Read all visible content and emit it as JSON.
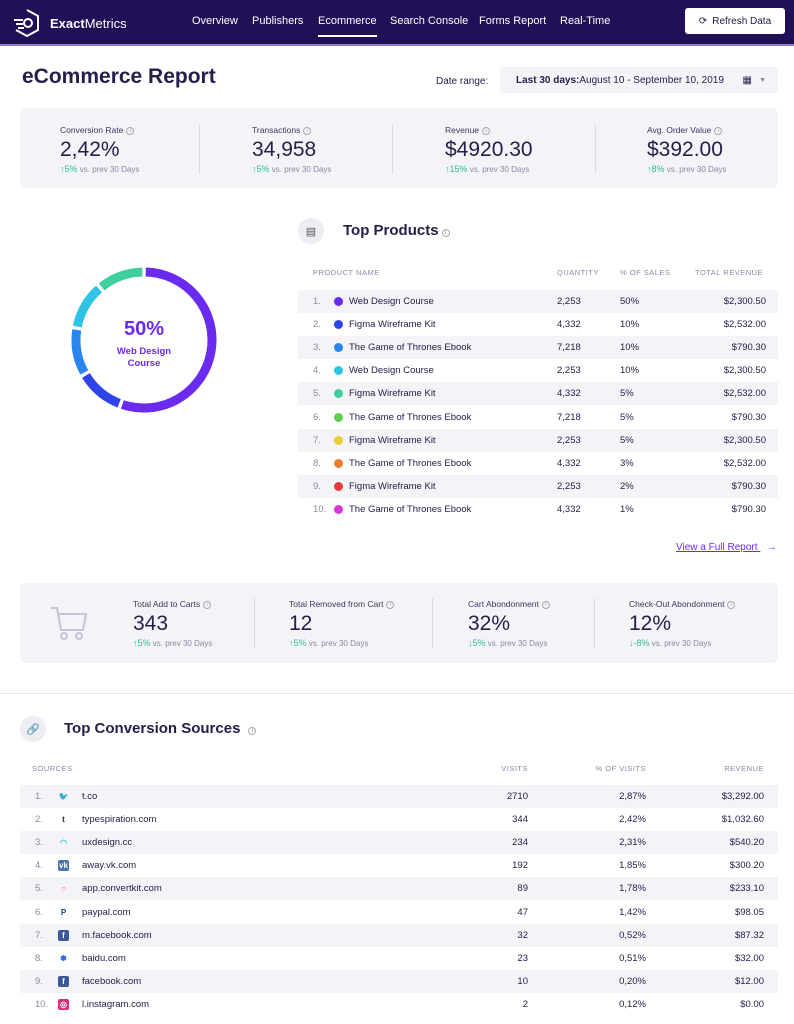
{
  "nav": {
    "brand_bold": "Exact",
    "brand_light": "Metrics",
    "items": [
      "Overview",
      "Publishers",
      "Ecommerce",
      "Search Console",
      "Forms Report",
      "Real-Time"
    ],
    "active": "Ecommerce",
    "refresh_label": "Refresh Data"
  },
  "header": {
    "title": "eCommerce Report",
    "date_label": "Date range:",
    "date_bold": "Last 30 days:",
    "date_value": " August 10 - September 10, 2019"
  },
  "stats": [
    {
      "label": "Conversion Rate",
      "value": "2,42%",
      "change": "5%",
      "note": "vs. prev 30 Days",
      "dir": "up"
    },
    {
      "label": "Transactions",
      "value": "34,958",
      "change": "5%",
      "note": "vs. prev 30 Days",
      "dir": "up"
    },
    {
      "label": "Revenue",
      "value": "$4920.30",
      "change": "15%",
      "note": "vs. prev 30 Days",
      "dir": "up"
    },
    {
      "label": "Avg. Order Value",
      "value": "$392.00",
      "change": "8%",
      "note": "vs. prev 30 Days",
      "dir": "up"
    }
  ],
  "donut": {
    "percent": "50%",
    "label": "Web Design Course",
    "segments": [
      {
        "value": 50,
        "color": "#6a2bef"
      },
      {
        "value": 10,
        "color": "#2f44e8"
      },
      {
        "value": 10,
        "color": "#2a86ee"
      },
      {
        "value": 10,
        "color": "#2fc4e6"
      },
      {
        "value": 10,
        "color": "#3fcf9e"
      }
    ]
  },
  "top_products": {
    "title": "Top Products",
    "columns": [
      "PRODUCT NAME",
      "QUANTITY",
      "% OF SALES",
      "TOTAL REVENUE"
    ],
    "rows": [
      {
        "n": "1.",
        "name": "Web Design Course",
        "qty": "2,253",
        "pct": "50%",
        "rev": "$2,300.50",
        "color": "#6a2bef"
      },
      {
        "n": "2.",
        "name": "Figma Wireframe Kit",
        "qty": "4,332",
        "pct": "10%",
        "rev": "$2,532.00",
        "color": "#2f44e8"
      },
      {
        "n": "3.",
        "name": "The Game of Thrones Ebook",
        "qty": "7,218",
        "pct": "10%",
        "rev": "$790.30",
        "color": "#2a86ee"
      },
      {
        "n": "4.",
        "name": "Web Design Course",
        "qty": "2,253",
        "pct": "10%",
        "rev": "$2,300.50",
        "color": "#2fc4e6"
      },
      {
        "n": "5.",
        "name": "Figma Wireframe Kit",
        "qty": "4,332",
        "pct": "5%",
        "rev": "$2,532.00",
        "color": "#3fcf9e"
      },
      {
        "n": "6.",
        "name": "The Game of Thrones Ebook",
        "qty": "7,218",
        "pct": "5%",
        "rev": "$790.30",
        "color": "#5ccf4c"
      },
      {
        "n": "7.",
        "name": "Figma Wireframe Kit",
        "qty": "2,253",
        "pct": "5%",
        "rev": "$2,300.50",
        "color": "#e6d034"
      },
      {
        "n": "8.",
        "name": "The Game of Thrones Ebook",
        "qty": "4,332",
        "pct": "3%",
        "rev": "$2,532.00",
        "color": "#ee7a2e"
      },
      {
        "n": "9.",
        "name": "Figma Wireframe Kit",
        "qty": "2,253",
        "pct": "2%",
        "rev": "$790.30",
        "color": "#e33a3a"
      },
      {
        "n": "10.",
        "name": "The Game of Thrones Ebook",
        "qty": "4,332",
        "pct": "1%",
        "rev": "$790.30",
        "color": "#d63ad6"
      }
    ],
    "link": "View a Full Report"
  },
  "cart_stats": [
    {
      "label": "Total Add to Carts",
      "value": "343",
      "change": "5%",
      "note": "vs. prev 30 Days",
      "dir": "up"
    },
    {
      "label": "Total Removed from Cart",
      "value": "12",
      "change": "5%",
      "note": "vs. prev 30 Days",
      "dir": "up"
    },
    {
      "label": "Cart Abondonment",
      "value": "32%",
      "change": "5%",
      "note": "vs. prev 30 Days",
      "dir": "down"
    },
    {
      "label": "Check-Out Abondonment",
      "value": "12%",
      "change": "-8%",
      "note": "vs. prev 30 Days",
      "dir": "down"
    }
  ],
  "sources": {
    "title": "Top Conversion Sources",
    "columns": [
      "SOURCES",
      "VISITS",
      "% OF VISITS",
      "REVENUE"
    ],
    "rows": [
      {
        "n": "1.",
        "name": "t.co",
        "visits": "2710",
        "pct": "2,87%",
        "rev": "$3,292.00",
        "icon": "twitter",
        "color": "#1da1f2",
        "glyph": "🐦"
      },
      {
        "n": "2.",
        "name": "typespiration.com",
        "visits": "344",
        "pct": "2,42%",
        "rev": "$1,032.60",
        "icon": "tumblr",
        "color": "#222222",
        "glyph": "t"
      },
      {
        "n": "3.",
        "name": "uxdesign.cc",
        "visits": "234",
        "pct": "2,31%",
        "rev": "$540.20",
        "icon": "uxdesign",
        "color": "#2fc4e6",
        "glyph": "◠"
      },
      {
        "n": "4.",
        "name": "away.vk.com",
        "visits": "192",
        "pct": "1,85%",
        "rev": "$300.20",
        "icon": "vk",
        "color": "#4c75a3",
        "glyph": "vk"
      },
      {
        "n": "5.",
        "name": "app.convertkit.com",
        "visits": "89",
        "pct": "1,78%",
        "rev": "$233.10",
        "icon": "convertkit",
        "color": "#f15a5a",
        "glyph": "○"
      },
      {
        "n": "6.",
        "name": "paypal.com",
        "visits": "47",
        "pct": "1,42%",
        "rev": "$98.05",
        "icon": "paypal",
        "color": "#1b3f8f",
        "glyph": "P"
      },
      {
        "n": "7.",
        "name": "m.facebook.com",
        "visits": "32",
        "pct": "0,52%",
        "rev": "$87.32",
        "icon": "facebook",
        "color": "#3b5998",
        "glyph": "f"
      },
      {
        "n": "8.",
        "name": "baidu.com",
        "visits": "23",
        "pct": "0,51%",
        "rev": "$32.00",
        "icon": "baidu",
        "color": "#2f6fe6",
        "glyph": "✽"
      },
      {
        "n": "9.",
        "name": "facebook.com",
        "visits": "10",
        "pct": "0,20%",
        "rev": "$12.00",
        "icon": "facebook",
        "color": "#3b5998",
        "glyph": "f"
      },
      {
        "n": "10.",
        "name": "l.instagram.com",
        "visits": "2",
        "pct": "0,12%",
        "rev": "$0.00",
        "icon": "instagram",
        "color": "#d6307a",
        "glyph": "◎"
      }
    ]
  }
}
